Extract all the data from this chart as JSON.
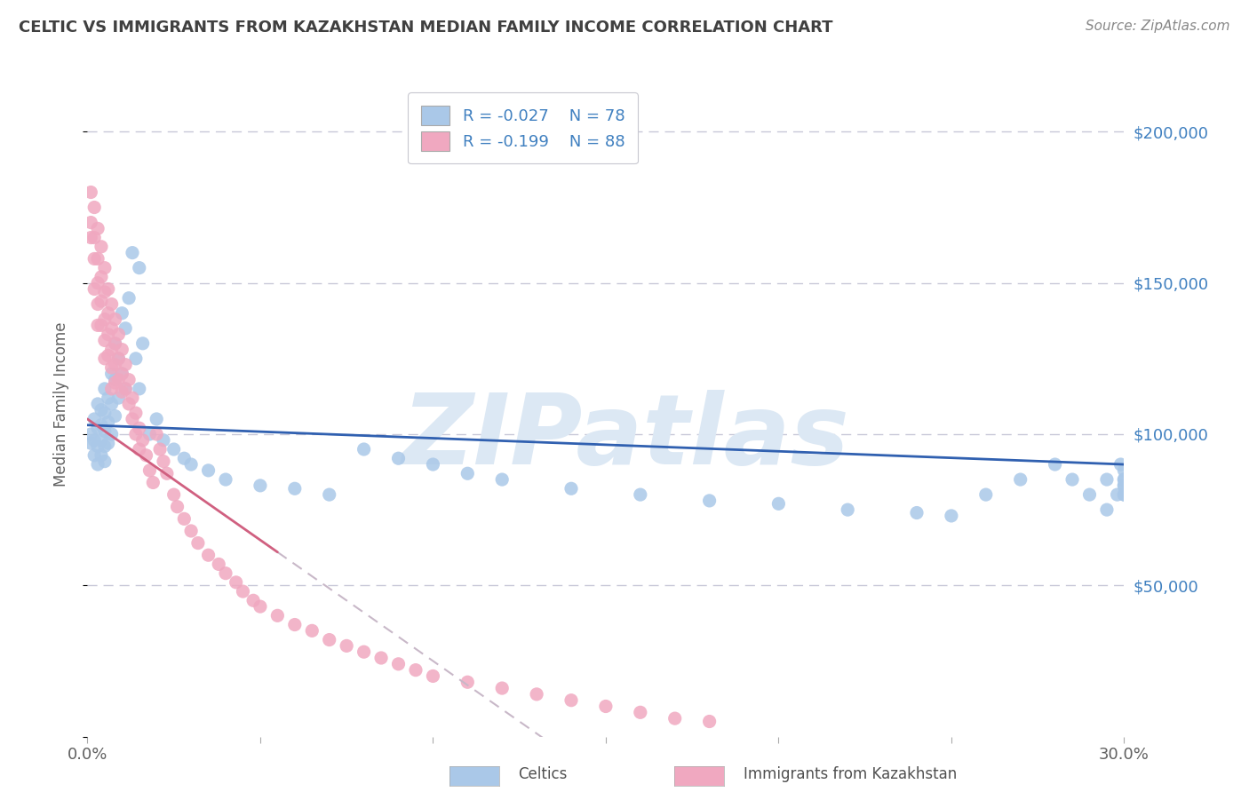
{
  "title": "CELTIC VS IMMIGRANTS FROM KAZAKHSTAN MEDIAN FAMILY INCOME CORRELATION CHART",
  "source": "Source: ZipAtlas.com",
  "ylabel": "Median Family Income",
  "xlim": [
    0.0,
    0.3
  ],
  "ylim": [
    0,
    220000
  ],
  "celtics_R": -0.027,
  "celtics_N": 78,
  "kazakhstan_R": -0.199,
  "kazakhstan_N": 88,
  "celtics_color": "#aac8e8",
  "kazakhstan_color": "#f0a8c0",
  "celtics_line_color": "#3060b0",
  "kazakhstan_line_solid_color": "#d06080",
  "kazakhstan_line_dash_color": "#c8b8c8",
  "title_color": "#404040",
  "source_color": "#888888",
  "axis_label_color": "#606060",
  "ytick_color": "#4080c0",
  "watermark": "ZIPatlas",
  "watermark_color": "#dce8f4",
  "legend_label_celtics": "Celtics",
  "legend_label_kazakhstan": "Immigrants from Kazakhstan",
  "background_color": "#ffffff",
  "grid_color": "#c8c8d8",
  "celtics_x": [
    0.001,
    0.001,
    0.002,
    0.002,
    0.002,
    0.003,
    0.003,
    0.003,
    0.003,
    0.004,
    0.004,
    0.004,
    0.004,
    0.005,
    0.005,
    0.005,
    0.005,
    0.005,
    0.006,
    0.006,
    0.006,
    0.007,
    0.007,
    0.007,
    0.008,
    0.008,
    0.008,
    0.009,
    0.009,
    0.01,
    0.01,
    0.011,
    0.011,
    0.012,
    0.013,
    0.014,
    0.015,
    0.015,
    0.016,
    0.018,
    0.02,
    0.022,
    0.025,
    0.028,
    0.03,
    0.035,
    0.04,
    0.05,
    0.06,
    0.07,
    0.08,
    0.09,
    0.1,
    0.11,
    0.12,
    0.14,
    0.16,
    0.18,
    0.2,
    0.22,
    0.24,
    0.25,
    0.26,
    0.27,
    0.28,
    0.285,
    0.29,
    0.295,
    0.295,
    0.298,
    0.299,
    0.3,
    0.3,
    0.3,
    0.3,
    0.3,
    0.3,
    0.3
  ],
  "celtics_y": [
    100000,
    97000,
    105000,
    98000,
    93000,
    110000,
    102000,
    96000,
    90000,
    108000,
    103000,
    98000,
    93000,
    115000,
    107000,
    101000,
    96000,
    91000,
    112000,
    104000,
    97000,
    120000,
    110000,
    100000,
    130000,
    118000,
    106000,
    125000,
    112000,
    140000,
    120000,
    135000,
    115000,
    145000,
    160000,
    125000,
    155000,
    115000,
    130000,
    100000,
    105000,
    98000,
    95000,
    92000,
    90000,
    88000,
    85000,
    83000,
    82000,
    80000,
    95000,
    92000,
    90000,
    87000,
    85000,
    82000,
    80000,
    78000,
    77000,
    75000,
    74000,
    73000,
    80000,
    85000,
    90000,
    85000,
    80000,
    75000,
    85000,
    80000,
    90000,
    88000,
    85000,
    83000,
    80000,
    83000,
    80000,
    85000
  ],
  "kazakhstan_x": [
    0.001,
    0.001,
    0.001,
    0.002,
    0.002,
    0.002,
    0.002,
    0.003,
    0.003,
    0.003,
    0.003,
    0.003,
    0.004,
    0.004,
    0.004,
    0.004,
    0.005,
    0.005,
    0.005,
    0.005,
    0.005,
    0.006,
    0.006,
    0.006,
    0.006,
    0.007,
    0.007,
    0.007,
    0.007,
    0.007,
    0.008,
    0.008,
    0.008,
    0.008,
    0.009,
    0.009,
    0.009,
    0.01,
    0.01,
    0.01,
    0.011,
    0.011,
    0.012,
    0.012,
    0.013,
    0.013,
    0.014,
    0.014,
    0.015,
    0.015,
    0.016,
    0.017,
    0.018,
    0.019,
    0.02,
    0.021,
    0.022,
    0.023,
    0.025,
    0.026,
    0.028,
    0.03,
    0.032,
    0.035,
    0.038,
    0.04,
    0.043,
    0.045,
    0.048,
    0.05,
    0.055,
    0.06,
    0.065,
    0.07,
    0.075,
    0.08,
    0.085,
    0.09,
    0.095,
    0.1,
    0.11,
    0.12,
    0.13,
    0.14,
    0.15,
    0.16,
    0.17,
    0.18
  ],
  "kazakhstan_y": [
    180000,
    170000,
    165000,
    175000,
    165000,
    158000,
    148000,
    168000,
    158000,
    150000,
    143000,
    136000,
    162000,
    152000,
    144000,
    136000,
    155000,
    147000,
    138000,
    131000,
    125000,
    148000,
    140000,
    133000,
    126000,
    143000,
    135000,
    128000,
    122000,
    115000,
    138000,
    130000,
    123000,
    117000,
    133000,
    125000,
    118000,
    128000,
    120000,
    114000,
    123000,
    115000,
    118000,
    110000,
    112000,
    105000,
    107000,
    100000,
    102000,
    95000,
    98000,
    93000,
    88000,
    84000,
    100000,
    95000,
    91000,
    87000,
    80000,
    76000,
    72000,
    68000,
    64000,
    60000,
    57000,
    54000,
    51000,
    48000,
    45000,
    43000,
    40000,
    37000,
    35000,
    32000,
    30000,
    28000,
    26000,
    24000,
    22000,
    20000,
    18000,
    16000,
    14000,
    12000,
    10000,
    8000,
    6000,
    5000
  ]
}
